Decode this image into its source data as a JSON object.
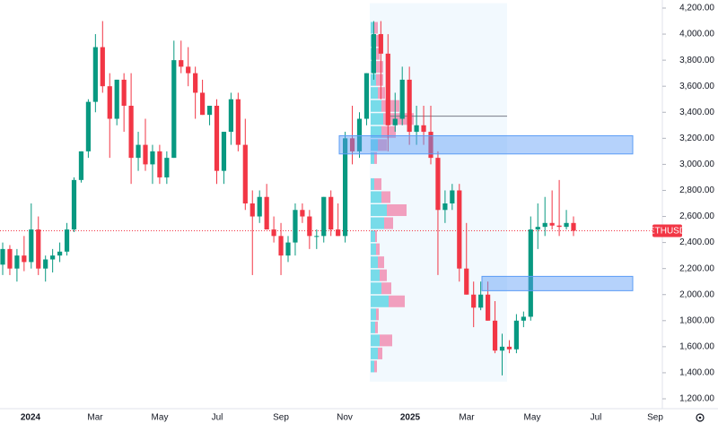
{
  "chart_data": {
    "type": "candlestick",
    "symbol": "ETHUSD",
    "up_color": "#089981",
    "down_color": "#f23645",
    "ylim": [
      1200,
      4200
    ],
    "yticks": [
      {
        "value": 1200,
        "label": "1,200.00"
      },
      {
        "value": 1400,
        "label": "1,400.00"
      },
      {
        "value": 1600,
        "label": "1,600.00"
      },
      {
        "value": 1800,
        "label": "1,800.00"
      },
      {
        "value": 2000,
        "label": "2,000.00"
      },
      {
        "value": 2200,
        "label": "2,200.00"
      },
      {
        "value": 2400,
        "label": "2,400.00"
      },
      {
        "value": 2600,
        "label": "2,600.00"
      },
      {
        "value": 2800,
        "label": "2,800.00"
      },
      {
        "value": 3000,
        "label": "3,000.00"
      },
      {
        "value": 3200,
        "label": "3,200.00"
      },
      {
        "value": 3400,
        "label": "3,400.00"
      },
      {
        "value": 3600,
        "label": "3,600.00"
      },
      {
        "value": 3800,
        "label": "3,800.00"
      },
      {
        "value": 4000,
        "label": "4,000.00"
      },
      {
        "value": 4200,
        "label": "4,200.00"
      }
    ],
    "xticks": [
      "2024",
      "Mar",
      "May",
      "Jul",
      "Sep",
      "Nov",
      "2025",
      "Mar",
      "May",
      "Jul",
      "Sep"
    ],
    "open": [
      2230,
      2350,
      2200,
      2300,
      2250,
      2500,
      2200,
      2270,
      2300,
      2330,
      2500,
      2880,
      3100,
      3480,
      3900,
      3600,
      3350,
      3650,
      3450,
      3050,
      3150,
      3000,
      3100,
      2900,
      3050,
      3800,
      3750,
      3700,
      3550,
      3380,
      3450,
      2950,
      3250,
      3500,
      3150,
      2700,
      2600,
      2750,
      2500,
      2450,
      2300,
      2400,
      2650,
      2600,
      2450,
      2450,
      2750,
      2500,
      2450,
      3200,
      3100,
      3350,
      3700,
      4000,
      3850,
      3300,
      3350,
      3650,
      3250,
      3300,
      3250,
      3050,
      2650,
      2700,
      2800,
      2200,
      2000,
      1900,
      2000,
      1800,
      1570,
      1600,
      1580,
      1800,
      1830,
      2500,
      2520,
      2550,
      2530,
      2520,
      2550
    ],
    "high": [
      2400,
      2380,
      2350,
      2450,
      2700,
      2600,
      2300,
      2350,
      2400,
      2550,
      2900,
      3100,
      3500,
      4000,
      4100,
      3700,
      3650,
      3700,
      3700,
      3250,
      3350,
      3150,
      3150,
      3100,
      3950,
      3950,
      3900,
      3750,
      3650,
      3450,
      3500,
      3250,
      3550,
      3550,
      3350,
      2800,
      2800,
      2850,
      2600,
      2550,
      2450,
      2700,
      2700,
      2650,
      2500,
      2750,
      2800,
      2700,
      3250,
      3450,
      3400,
      3700,
      4100,
      4100,
      4000,
      3550,
      3750,
      3750,
      3450,
      3450,
      3450,
      3100,
      2800,
      2850,
      2850,
      2550,
      2100,
      2100,
      2100,
      1950,
      1700,
      1650,
      1850,
      1870,
      2600,
      2700,
      2750,
      2800,
      2880,
      2650,
      2600
    ],
    "low": [
      2150,
      2150,
      2100,
      2180,
      2200,
      2150,
      2100,
      2170,
      2250,
      2300,
      2480,
      2860,
      3050,
      3400,
      3550,
      3050,
      3300,
      3250,
      2850,
      2950,
      2950,
      2850,
      2850,
      2850,
      3050,
      3700,
      3600,
      3350,
      3380,
      3300,
      2850,
      2850,
      3150,
      3100,
      2650,
      2150,
      2550,
      2500,
      2400,
      2150,
      2250,
      2300,
      2550,
      2350,
      2350,
      2400,
      2450,
      2450,
      2400,
      3000,
      3050,
      3300,
      3650,
      3500,
      3100,
      3250,
      3300,
      3150,
      3150,
      3150,
      3000,
      2150,
      2550,
      2650,
      2100,
      2000,
      1750,
      1880,
      1800,
      1550,
      1380,
      1550,
      1550,
      1750,
      1800,
      2350,
      2450,
      2500,
      2450,
      2500,
      2450
    ],
    "close": [
      2350,
      2200,
      2300,
      2250,
      2500,
      2200,
      2270,
      2300,
      2330,
      2500,
      2880,
      3100,
      3480,
      3900,
      3600,
      3350,
      3650,
      3450,
      3050,
      3150,
      3000,
      3100,
      2900,
      3050,
      3800,
      3750,
      3700,
      3550,
      3380,
      3450,
      2950,
      3250,
      3500,
      3150,
      2700,
      2600,
      2750,
      2500,
      2450,
      2300,
      2400,
      2650,
      2600,
      2450,
      2450,
      2750,
      2500,
      2450,
      3200,
      3100,
      3350,
      3700,
      4000,
      3850,
      3300,
      3350,
      3650,
      3250,
      3300,
      3250,
      3050,
      2650,
      2700,
      2800,
      2200,
      2000,
      1900,
      2000,
      1800,
      1570,
      1600,
      1580,
      1800,
      1830,
      2500,
      2520,
      2550,
      2530,
      2520,
      2550,
      2490
    ],
    "last_price": 2490,
    "zones": [
      {
        "top": 3220,
        "bottom": 3080,
        "color": "#5b9cf6"
      },
      {
        "top": 2140,
        "bottom": 2030,
        "color": "#5b9cf6"
      }
    ],
    "range_box": {
      "top": 4100,
      "bottom": 1380,
      "poc": 3370
    },
    "volume_profile": {
      "row_height": 100,
      "up_color": "#4dd0e1",
      "down_color": "#f06292",
      "rows": [
        {
          "price": 1400,
          "up": 4,
          "down": 3
        },
        {
          "price": 1500,
          "up": 8,
          "down": 5
        },
        {
          "price": 1600,
          "up": 10,
          "down": 14
        },
        {
          "price": 1700,
          "up": 5,
          "down": 3
        },
        {
          "price": 1800,
          "up": 6,
          "down": 3
        },
        {
          "price": 1900,
          "up": 20,
          "down": 18
        },
        {
          "price": 2000,
          "up": 12,
          "down": 11
        },
        {
          "price": 2100,
          "up": 10,
          "down": 8
        },
        {
          "price": 2200,
          "up": 8,
          "down": 7
        },
        {
          "price": 2300,
          "up": 6,
          "down": 4
        },
        {
          "price": 2400,
          "up": 5,
          "down": 2
        },
        {
          "price": 2500,
          "up": 15,
          "down": 10
        },
        {
          "price": 2600,
          "up": 18,
          "down": 22
        },
        {
          "price": 2700,
          "up": 12,
          "down": 10
        },
        {
          "price": 2800,
          "up": 4,
          "down": 8
        },
        {
          "price": 3000,
          "up": 4,
          "down": 3
        },
        {
          "price": 3100,
          "up": 8,
          "down": 10
        },
        {
          "price": 3200,
          "up": 12,
          "down": 16
        },
        {
          "price": 3300,
          "up": 14,
          "down": 34
        },
        {
          "price": 3400,
          "up": 12,
          "down": 20
        },
        {
          "price": 3500,
          "up": 8,
          "down": 8
        },
        {
          "price": 3600,
          "up": 6,
          "down": 8
        },
        {
          "price": 3700,
          "up": 5,
          "down": 9
        },
        {
          "price": 3800,
          "up": 4,
          "down": 6
        },
        {
          "price": 3900,
          "up": 3,
          "down": 6
        },
        {
          "price": 4000,
          "up": 3,
          "down": 5
        }
      ]
    }
  }
}
